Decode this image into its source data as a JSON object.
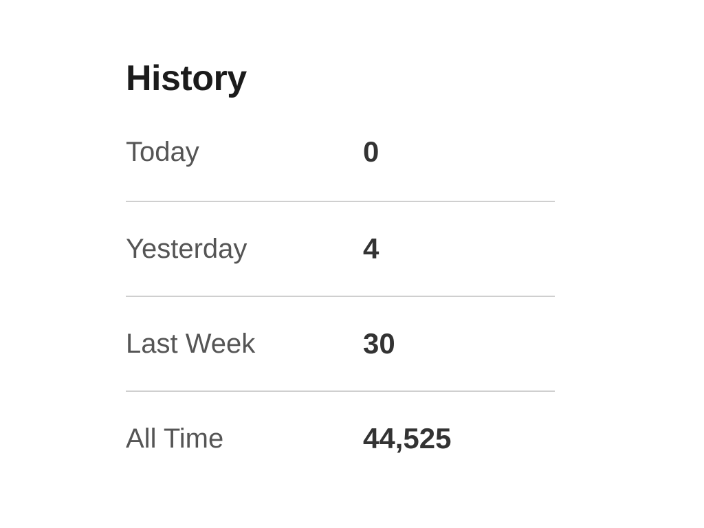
{
  "history": {
    "title": "History",
    "rows": [
      {
        "label": "Today",
        "value": "0"
      },
      {
        "label": "Yesterday",
        "value": "4"
      },
      {
        "label": "Last Week",
        "value": "30"
      },
      {
        "label": "All Time",
        "value": "44,525"
      }
    ]
  }
}
